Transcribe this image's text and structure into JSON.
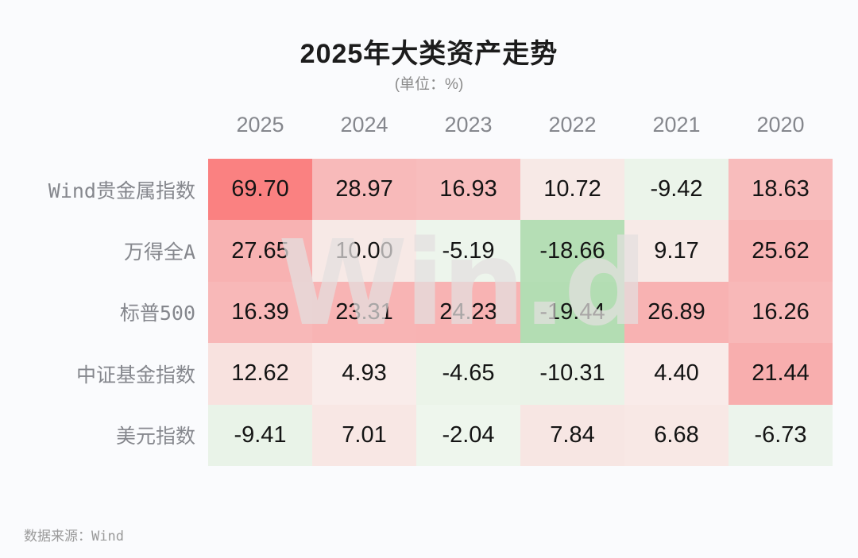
{
  "title": "2025年大类资产走势",
  "subtitle": "(单位：%)",
  "watermark": "Win.d",
  "source": "数据来源：Wind",
  "chart_data": {
    "type": "heatmap",
    "columns": [
      "2025",
      "2024",
      "2023",
      "2022",
      "2021",
      "2020"
    ],
    "rows": [
      {
        "label": "Wind贵金属指数",
        "values": [
          69.7,
          28.97,
          16.93,
          10.72,
          -9.42,
          18.63
        ],
        "display": [
          "69.70",
          "28.97",
          "16.93",
          "10.72",
          "-9.42",
          "18.63"
        ],
        "cell_colors": [
          "#fa8181",
          "#f8baba",
          "#f8bdbd",
          "#f7e9e6",
          "#ebf4ea",
          "#f8bcbc"
        ]
      },
      {
        "label": "万得全A",
        "values": [
          27.65,
          10.0,
          -5.19,
          -18.66,
          9.17,
          25.62
        ],
        "display": [
          "27.65",
          "10.00",
          "-5.19",
          "-18.66",
          "9.17",
          "25.62"
        ],
        "cell_colors": [
          "#f8b2b2",
          "#f7e9e6",
          "#edf5ec",
          "#b5deb5",
          "#f7eae7",
          "#f8b4b4"
        ]
      },
      {
        "label": "标普500",
        "values": [
          16.39,
          23.31,
          24.23,
          -19.44,
          26.89,
          16.26
        ],
        "display": [
          "16.39",
          "23.31",
          "24.23",
          "-19.44",
          "26.89",
          "16.26"
        ],
        "cell_colors": [
          "#f8b8b8",
          "#f8b4b4",
          "#f8b3b3",
          "#b3ddb3",
          "#f8b2b2",
          "#f8b8b8"
        ]
      },
      {
        "label": "中证基金指数",
        "values": [
          12.62,
          4.93,
          -4.65,
          -10.31,
          4.4,
          21.44
        ],
        "display": [
          "12.62",
          "4.93",
          "-4.65",
          "-10.31",
          "4.40",
          "21.44"
        ],
        "cell_colors": [
          "#f8e2df",
          "#f9ecea",
          "#ebf4e9",
          "#eaf3e8",
          "#f9ebe9",
          "#f8aeae"
        ]
      },
      {
        "label": "美元指数",
        "values": [
          -9.41,
          7.01,
          -2.04,
          7.84,
          6.68,
          -6.73
        ],
        "display": [
          "-9.41",
          "7.01",
          "-2.04",
          "7.84",
          "6.68",
          "-6.73"
        ],
        "cell_colors": [
          "#e9f3e8",
          "#f8e7e4",
          "#eef6ed",
          "#f7e6e3",
          "#f8e8e5",
          "#ecf4ec"
        ]
      }
    ],
    "legend_position": "none",
    "color_scale": {
      "positive_max": "#fa8181",
      "positive_mid": "#f8b4b4",
      "positive_low": "#f8e8e5",
      "negative_low": "#ecf4ec",
      "negative_max": "#b3ddb3",
      "meaning": "red = positive return, green = negative return"
    }
  }
}
